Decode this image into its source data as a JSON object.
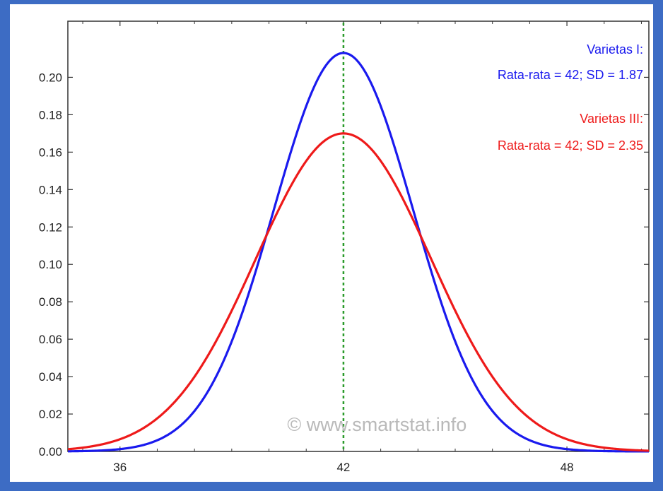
{
  "colors": {
    "page_background": "#3d6cc4",
    "plot_background": "#ffffff",
    "series_1": "#1a1aee",
    "series_2": "#ee1a1a",
    "mean_line": "#2a9a2a",
    "watermark": "#b9b9b9"
  },
  "chart_data": {
    "type": "line",
    "title": "",
    "xlabel": "",
    "ylabel": "",
    "xlim": [
      34.6,
      50.2
    ],
    "ylim": [
      0,
      0.23
    ],
    "x_ticks": [
      36,
      42,
      48
    ],
    "x_tick_labels": [
      "36",
      "42",
      "48"
    ],
    "y_ticks": [
      0,
      0.02,
      0.04,
      0.06,
      0.08,
      0.1,
      0.12,
      0.14,
      0.16,
      0.18,
      0.2
    ],
    "y_tick_labels": [
      "0.00",
      "0.02",
      "0.04",
      "0.06",
      "0.08",
      "0.10",
      "0.12",
      "0.14",
      "0.16",
      "0.18",
      "0.20"
    ],
    "grid": false,
    "reference_line": {
      "x": 42,
      "style": "dotted",
      "color": "#2a9a2a"
    },
    "series": [
      {
        "name": "Varietas I:",
        "distribution": "normal",
        "mean": 42,
        "sd": 1.87,
        "peak": 0.213,
        "color": "#1a1aee"
      },
      {
        "name": "Varietas III:",
        "distribution": "normal",
        "mean": 42,
        "sd": 2.35,
        "peak": 0.17,
        "color": "#ee1a1a"
      }
    ],
    "annotations": [
      {
        "line1": "Varietas I:",
        "line2": "Rata-rata = 42; SD = 1.87",
        "color": "#1a1aee"
      },
      {
        "line1": "Varietas III:",
        "line2": "Rata-rata = 42; SD = 2.35",
        "color": "#ee1a1a"
      }
    ],
    "watermark": "© www.smartstat.info"
  }
}
